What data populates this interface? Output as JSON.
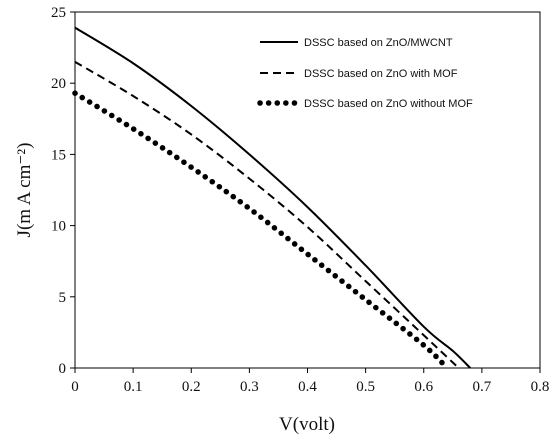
{
  "chart_data": {
    "type": "line",
    "title": "",
    "xlabel": "V(volt)",
    "ylabel": "J(m A cm⁻²)",
    "xlim": [
      0,
      0.8
    ],
    "ylim": [
      0,
      25
    ],
    "x_ticks": [
      "0",
      "0.1",
      "0.2",
      "0.3",
      "0.4",
      "0.5",
      "0.6",
      "0.7",
      "0.8"
    ],
    "y_ticks": [
      "0",
      "5",
      "10",
      "15",
      "20",
      "25"
    ],
    "grid": false,
    "legend_position": "top-right",
    "series": [
      {
        "name": "DSSC based on ZnO/MWCNT",
        "style": "solid",
        "x": [
          0,
          0.1,
          0.2,
          0.3,
          0.4,
          0.5,
          0.6,
          0.65,
          0.68
        ],
        "y": [
          23.9,
          21.4,
          18.4,
          15.0,
          11.3,
          7.2,
          2.9,
          1.2,
          0
        ]
      },
      {
        "name": "DSSC based on ZnO with MOF",
        "style": "dashed",
        "x": [
          0,
          0.1,
          0.2,
          0.3,
          0.4,
          0.5,
          0.6,
          0.66
        ],
        "y": [
          21.5,
          19.1,
          16.4,
          13.3,
          9.9,
          6.1,
          2.3,
          0
        ]
      },
      {
        "name": "DSSC based on ZnO without MOF",
        "style": "dotted",
        "x": [
          0,
          0.1,
          0.2,
          0.3,
          0.4,
          0.5,
          0.6,
          0.64
        ],
        "y": [
          19.3,
          16.8,
          14.1,
          11.2,
          8.0,
          4.8,
          1.6,
          0
        ]
      }
    ],
    "colors": {
      "line": "#000000",
      "axis": "#000000",
      "background": "#ffffff"
    }
  }
}
